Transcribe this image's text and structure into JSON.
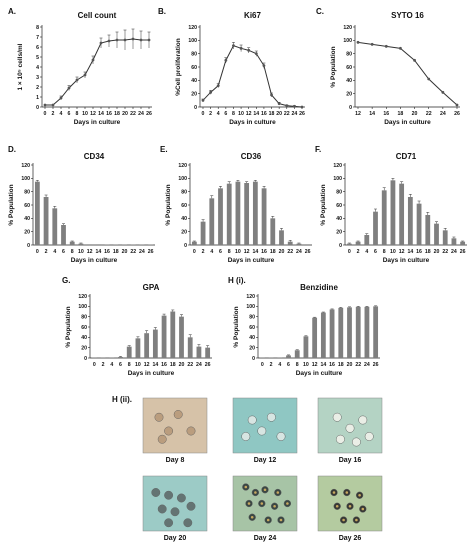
{
  "chart_data": [
    {
      "panel": "A.",
      "type": "line",
      "title": "Cell count",
      "xlabel": "Days in culture",
      "ylabel": "1 × 10⁵ cells/ml",
      "x": [
        0,
        2,
        4,
        6,
        8,
        10,
        12,
        14,
        16,
        18,
        20,
        22,
        24,
        26
      ],
      "y": [
        0.2,
        0.2,
        0.9,
        1.9,
        2.7,
        3.2,
        4.7,
        6.4,
        6.6,
        6.7,
        6.7,
        6.8,
        6.7,
        6.7
      ],
      "err": [
        0,
        0,
        0.2,
        0.25,
        0.3,
        0.3,
        0.4,
        0.5,
        0.6,
        0.8,
        1,
        1,
        0.9,
        0.8
      ],
      "xlim": [
        0,
        26
      ],
      "ylim": [
        0,
        8
      ],
      "yticks": [
        0,
        1,
        2,
        3,
        4,
        5,
        6,
        7,
        8
      ],
      "xticks": [
        0,
        2,
        4,
        6,
        8,
        10,
        12,
        14,
        16,
        18,
        20,
        22,
        24,
        26
      ]
    },
    {
      "panel": "B.",
      "type": "line",
      "title": "Ki67",
      "xlabel": "Days in culture",
      "ylabel": "%Cell proliferation",
      "x": [
        0,
        2,
        4,
        6,
        8,
        10,
        12,
        14,
        16,
        18,
        20,
        22,
        24,
        26
      ],
      "y": [
        10,
        22,
        32,
        70,
        92,
        88,
        85,
        80,
        62,
        18,
        5,
        2,
        1,
        0
      ],
      "err": [
        2,
        3,
        3,
        4,
        5,
        5,
        4,
        4,
        4,
        3,
        2,
        1,
        1,
        0
      ],
      "xlim": [
        0,
        26
      ],
      "ylim": [
        0,
        120
      ],
      "yticks": [
        0,
        20,
        40,
        60,
        80,
        100,
        120
      ],
      "xticks": [
        0,
        2,
        4,
        6,
        8,
        10,
        12,
        14,
        16,
        18,
        20,
        22,
        24,
        26
      ]
    },
    {
      "panel": "C.",
      "type": "line",
      "title": "SYTO 16",
      "xlabel": "Days in culture",
      "ylabel": "% Population",
      "x": [
        12,
        14,
        16,
        18,
        20,
        22,
        24,
        26
      ],
      "y": [
        97,
        94,
        91,
        88,
        70,
        42,
        22,
        3
      ],
      "err": [
        0,
        0,
        0,
        0,
        0,
        0,
        0,
        0
      ],
      "xlim": [
        12,
        26
      ],
      "ylim": [
        0,
        120
      ],
      "yticks": [
        0,
        20,
        40,
        60,
        80,
        100,
        120
      ],
      "xticks": [
        12,
        14,
        16,
        18,
        20,
        22,
        24,
        26
      ]
    },
    {
      "panel": "D.",
      "type": "bar",
      "title": "CD34",
      "xlabel": "Days in culture",
      "ylabel": "% Population",
      "categories": [
        "0",
        "2",
        "4",
        "6",
        "8",
        "10",
        "12",
        "14",
        "16",
        "18",
        "20",
        "22",
        "24",
        "26"
      ],
      "values": [
        95,
        72,
        55,
        30,
        5,
        2,
        1,
        1,
        0.5,
        0.5,
        0.5,
        0.5,
        0.5,
        0.5
      ],
      "err": [
        2,
        3,
        3,
        2,
        1,
        1,
        0,
        0,
        0,
        0,
        0,
        0,
        0,
        0
      ],
      "ylim": [
        0,
        120
      ],
      "yticks": [
        0,
        20,
        40,
        60,
        80,
        100,
        120
      ]
    },
    {
      "panel": "E.",
      "type": "bar",
      "title": "CD36",
      "xlabel": "Days in culture",
      "ylabel": "% Population",
      "categories": [
        "0",
        "2",
        "4",
        "6",
        "8",
        "10",
        "12",
        "14",
        "16",
        "18",
        "20",
        "22",
        "24",
        "26"
      ],
      "values": [
        5,
        35,
        70,
        85,
        92,
        95,
        93,
        95,
        85,
        40,
        22,
        5,
        2,
        1
      ],
      "err": [
        1,
        3,
        4,
        3,
        3,
        2,
        2,
        2,
        3,
        3,
        3,
        2,
        1,
        0
      ],
      "ylim": [
        0,
        120
      ],
      "yticks": [
        0,
        20,
        40,
        60,
        80,
        100,
        120
      ]
    },
    {
      "panel": "F.",
      "type": "bar",
      "title": "CD71",
      "xlabel": "Days in culture",
      "ylabel": "% Population",
      "categories": [
        "0",
        "2",
        "4",
        "6",
        "8",
        "10",
        "12",
        "14",
        "16",
        "18",
        "20",
        "22",
        "24",
        "26"
      ],
      "values": [
        2,
        5,
        15,
        50,
        82,
        97,
        92,
        72,
        62,
        45,
        32,
        22,
        10,
        5
      ],
      "err": [
        1,
        1,
        2,
        4,
        4,
        3,
        3,
        4,
        4,
        4,
        3,
        3,
        2,
        1
      ],
      "ylim": [
        0,
        120
      ],
      "yticks": [
        0,
        20,
        40,
        60,
        80,
        100,
        120
      ]
    },
    {
      "panel": "G.",
      "type": "bar",
      "title": "GPA",
      "xlabel": "Days in culture",
      "ylabel": "% Population",
      "categories": [
        "0",
        "2",
        "4",
        "6",
        "8",
        "10",
        "12",
        "14",
        "16",
        "18",
        "20",
        "22",
        "24",
        "26"
      ],
      "values": [
        0.5,
        0.5,
        0.5,
        2,
        22,
        38,
        48,
        55,
        82,
        90,
        80,
        40,
        22,
        20
      ],
      "err": [
        0,
        0,
        0,
        1,
        2,
        3,
        5,
        4,
        3,
        3,
        4,
        5,
        4,
        4
      ],
      "ylim": [
        0,
        120
      ],
      "yticks": [
        0,
        20,
        40,
        60,
        80,
        100,
        120
      ]
    },
    {
      "panel": "H (i).",
      "type": "bar",
      "title": "Benzidine",
      "xlabel": "Days in culture",
      "ylabel": "% Population",
      "categories": [
        "0",
        "2",
        "4",
        "6",
        "8",
        "10",
        "12",
        "14",
        "16",
        "18",
        "20",
        "22",
        "24",
        "26"
      ],
      "values": [
        0.5,
        0.5,
        0.5,
        5,
        15,
        42,
        78,
        88,
        94,
        97,
        98,
        99,
        99,
        100
      ],
      "err": [
        0,
        0,
        0,
        1,
        1,
        1,
        1,
        1,
        1,
        1,
        1,
        1,
        1,
        1
      ],
      "ylim": [
        0,
        120
      ],
      "yticks": [
        0,
        20,
        40,
        60,
        80,
        100,
        120
      ]
    }
  ],
  "micrographs": {
    "panel_label": "H (ii).",
    "images": [
      {
        "caption": "Day 8",
        "background": "#d6c2a8",
        "cell_color": "#b89a7a",
        "stain": "none"
      },
      {
        "caption": "Day 12",
        "background": "#8fc7c3",
        "cell_color": "#dfe9e6",
        "stain": "sparse"
      },
      {
        "caption": "Day 16",
        "background": "#b4d3c4",
        "cell_color": "#f0f2ea",
        "stain": "none"
      },
      {
        "caption": "Day 20",
        "background": "#9ccbc6",
        "cell_color": "#5f6b6b",
        "stain": "light"
      },
      {
        "caption": "Day 24",
        "background": "#a7c4a6",
        "cell_color": "#2e3a3a",
        "stain": "heavy"
      },
      {
        "caption": "Day 26",
        "background": "#b4cba0",
        "cell_color": "#2a2a2a",
        "stain": "heavy"
      }
    ]
  },
  "colors": {
    "line": "#333333",
    "marker": "#555555",
    "bar": "#7f7f7f",
    "errbar": "#333333",
    "axis": "#222222"
  }
}
